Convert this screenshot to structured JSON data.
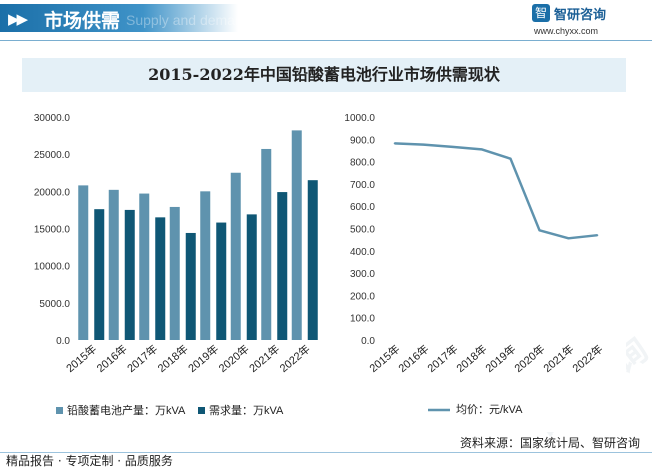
{
  "header": {
    "title": "市场供需",
    "watermark_text": "Supply and demand",
    "brand_name": "智研咨询",
    "brand_url": "www.chyxx.com"
  },
  "chart_title": "2015-2022年中国铅酸蓄电池行业市场供需现状",
  "chart_data": [
    {
      "type": "bar",
      "categories": [
        "2015年",
        "2016年",
        "2017年",
        "2018年",
        "2019年",
        "2020年",
        "2021年",
        "2022年"
      ],
      "series": [
        {
          "name": "铅酸蓄电池产量：万kVA",
          "color": "#5f93ae",
          "values": [
            20800,
            20200,
            19700,
            17900,
            20000,
            22500,
            25700,
            28200
          ]
        },
        {
          "name": "需求量：万kVA",
          "color": "#0f5775",
          "values": [
            17600,
            17500,
            16500,
            14400,
            15800,
            16900,
            19900,
            21500
          ]
        }
      ],
      "ylim": [
        0,
        30000
      ],
      "yticks": [
        "0.0",
        "5000.0",
        "10000.0",
        "15000.0",
        "20000.0",
        "25000.0",
        "30000.0"
      ],
      "grid": false,
      "legend": "bottom"
    },
    {
      "type": "line",
      "categories": [
        "2015年",
        "2016年",
        "2017年",
        "2018年",
        "2019年",
        "2020年",
        "2021年",
        "2022年"
      ],
      "series": [
        {
          "name": "均价：元/kVA",
          "color": "#5f93ae",
          "values": [
            882,
            876,
            866,
            855,
            813,
            492,
            456,
            470
          ]
        }
      ],
      "ylim": [
        0,
        1000
      ],
      "yticks": [
        "0.0",
        "100.0",
        "200.0",
        "300.0",
        "400.0",
        "500.0",
        "600.0",
        "700.0",
        "800.0",
        "900.0",
        "1000.0"
      ],
      "grid": false,
      "legend": "bottom"
    }
  ],
  "footer": {
    "source": "资料来源：国家统计局、智研咨询",
    "left": "精品报告 · 专项定制 · 品质服务"
  },
  "watermarks": [
    "智研咨询",
    "智研咨询",
    "智研咨询",
    "智研咨询"
  ]
}
